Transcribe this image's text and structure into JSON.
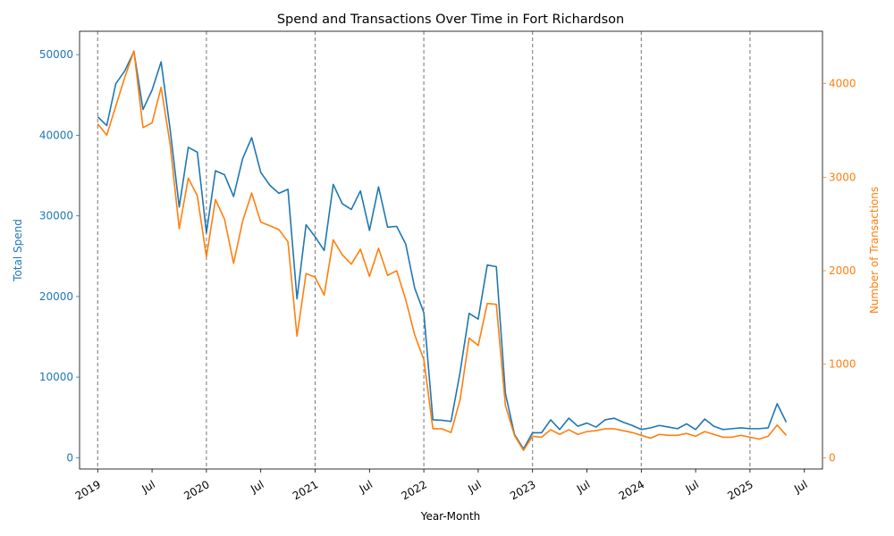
{
  "chart_data": {
    "type": "line",
    "title": "Spend and Transactions Over Time in Fort Richardson",
    "xlabel": "Year-Month",
    "ylabel_left": "Total Spend",
    "ylabel_right": "Number of Transactions",
    "ylim_left": [
      -1400,
      52900
    ],
    "ylim_right": [
      -120,
      4560
    ],
    "left_ticks": [
      0,
      10000,
      20000,
      30000,
      40000,
      50000
    ],
    "right_ticks": [
      0,
      1000,
      2000,
      3000,
      4000
    ],
    "x_ticks": [
      {
        "date": "2019-01",
        "label": "2019"
      },
      {
        "date": "2019-07",
        "label": "Jul"
      },
      {
        "date": "2020-01",
        "label": "2020"
      },
      {
        "date": "2020-07",
        "label": "Jul"
      },
      {
        "date": "2021-01",
        "label": "2021"
      },
      {
        "date": "2021-07",
        "label": "Jul"
      },
      {
        "date": "2022-01",
        "label": "2022"
      },
      {
        "date": "2022-07",
        "label": "Jul"
      },
      {
        "date": "2023-01",
        "label": "2023"
      },
      {
        "date": "2023-07",
        "label": "Jul"
      },
      {
        "date": "2024-01",
        "label": "2024"
      },
      {
        "date": "2024-07",
        "label": "Jul"
      },
      {
        "date": "2025-01",
        "label": "2025"
      },
      {
        "date": "2025-07",
        "label": "Jul"
      }
    ],
    "year_markers": [
      "2019-01",
      "2020-01",
      "2021-01",
      "2022-01",
      "2023-01",
      "2024-01",
      "2025-01"
    ],
    "xlim": [
      "2018-11",
      "2025-09"
    ],
    "grid": false,
    "colors": {
      "spend": "#1f77b4",
      "transactions": "#ff7f0e",
      "marker": "#808080"
    },
    "x": [
      "2019-01",
      "2019-02",
      "2019-03",
      "2019-04",
      "2019-05",
      "2019-06",
      "2019-07",
      "2019-08",
      "2019-09",
      "2019-10",
      "2019-11",
      "2019-12",
      "2020-01",
      "2020-02",
      "2020-03",
      "2020-04",
      "2020-05",
      "2020-06",
      "2020-07",
      "2020-08",
      "2020-09",
      "2020-10",
      "2020-11",
      "2020-12",
      "2021-01",
      "2021-02",
      "2021-03",
      "2021-04",
      "2021-05",
      "2021-06",
      "2021-07",
      "2021-08",
      "2021-09",
      "2021-10",
      "2021-11",
      "2021-12",
      "2022-01",
      "2022-02",
      "2022-03",
      "2022-04",
      "2022-05",
      "2022-06",
      "2022-07",
      "2022-08",
      "2022-09",
      "2022-10",
      "2022-11",
      "2022-12",
      "2023-01",
      "2023-02",
      "2023-03",
      "2023-04",
      "2023-05",
      "2023-06",
      "2023-07",
      "2023-08",
      "2023-09",
      "2023-10",
      "2023-11",
      "2023-12",
      "2024-01",
      "2024-02",
      "2024-03",
      "2024-04",
      "2024-05",
      "2024-06",
      "2024-07",
      "2024-08",
      "2024-09",
      "2024-10",
      "2024-11",
      "2024-12",
      "2025-01",
      "2025-02",
      "2025-03",
      "2025-04",
      "2025-05"
    ],
    "series": [
      {
        "name": "Total Spend",
        "axis": "left",
        "values": [
          42300,
          41200,
          46400,
          48000,
          50400,
          43200,
          45600,
          49100,
          40700,
          31100,
          38500,
          37900,
          27900,
          35600,
          35100,
          32400,
          37100,
          39700,
          35400,
          33800,
          32800,
          33300,
          19700,
          28900,
          27400,
          25700,
          33900,
          31500,
          30800,
          33100,
          28200,
          33600,
          28600,
          28700,
          26500,
          21000,
          18000,
          4700,
          4650,
          4500,
          10600,
          17900,
          17200,
          23900,
          23700,
          8000,
          2900,
          1100,
          3100,
          3100,
          4700,
          3500,
          4900,
          3900,
          4300,
          3800,
          4700,
          4900,
          4400,
          4000,
          3500,
          3700,
          4000,
          3800,
          3600,
          4200,
          3500,
          4800,
          3900,
          3500,
          3600,
          3700,
          3600,
          3600,
          3700,
          6700,
          4400
        ]
      },
      {
        "name": "Number of Transactions",
        "axis": "right",
        "values": [
          3570,
          3450,
          3760,
          4070,
          4350,
          3530,
          3580,
          3960,
          3350,
          2450,
          2990,
          2800,
          2150,
          2760,
          2550,
          2080,
          2530,
          2830,
          2520,
          2480,
          2440,
          2310,
          1300,
          1970,
          1930,
          1740,
          2330,
          2170,
          2070,
          2230,
          1940,
          2240,
          1950,
          2000,
          1690,
          1310,
          1050,
          310,
          310,
          270,
          620,
          1280,
          1200,
          1650,
          1640,
          560,
          240,
          80,
          230,
          220,
          300,
          250,
          300,
          250,
          280,
          290,
          310,
          310,
          290,
          270,
          240,
          210,
          250,
          240,
          240,
          260,
          230,
          280,
          250,
          220,
          220,
          240,
          220,
          200,
          230,
          350,
          240
        ]
      }
    ]
  }
}
